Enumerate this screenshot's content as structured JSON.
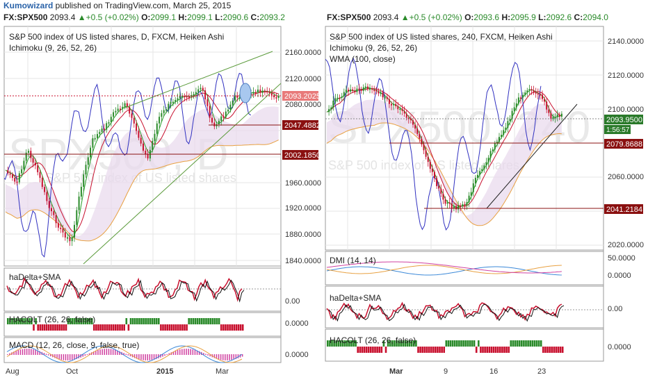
{
  "header": {
    "author": "Kumowizard",
    "rest": " published on TradingView.com, March 25, 2015"
  },
  "colors": {
    "up": "#2a8a2a",
    "down": "#c8102e",
    "blue": "#3030c0",
    "orange": "#e8a040",
    "kumo": "#e8d8ec",
    "grid": "#e6e6e6",
    "border": "#9a9a9a"
  },
  "left": {
    "quote": {
      "symbol": "FX:SPX500",
      "last": "2093.4",
      "change": "+0.5 (+0.02%)",
      "o_label": "O:",
      "o": "2099.1",
      "h_label": "H:",
      "h": "2099.1",
      "l_label": "L:",
      "l": "2090.6",
      "c_label": "C:",
      "c": "2093.2"
    },
    "title": "S&P 500 index of US listed shares, D, FXCM, Heiken Ashi",
    "indicator": "Ichimoku (9, 26, 52, 26)",
    "watermark": "SPX500, D",
    "watermark_sub": "S&P 500 index of US listed shares",
    "price_ticks": [
      "2160.0000",
      "2120.0000",
      "2080.0000",
      "1960.0000",
      "1920.0000",
      "1880.0000",
      "1840.0000"
    ],
    "price_tags": [
      {
        "text": "2093.2025",
        "bg": "#e87a7a"
      },
      {
        "text": "2047.4882",
        "bg": "#8a1010"
      },
      {
        "text": "2002.1850",
        "bg": "#8a1010"
      }
    ],
    "sub1": {
      "title": "haDelta+SMA",
      "tick": "0.00"
    },
    "sub2": {
      "title": "HACOLT (26, 26, false)",
      "tick": "0.0000"
    },
    "sub3": {
      "title": "MACD (12, 26, close, 9, false, true)",
      "tick": "0.0000"
    },
    "xaxis": [
      "Aug",
      "Oct",
      "2015",
      "Mar"
    ]
  },
  "right": {
    "quote": {
      "symbol": "FX:SPX500",
      "last": "2093.4",
      "change": "+0.5 (+0.02%)",
      "o_label": "O:",
      "o": "2093.6",
      "h_label": "H:",
      "h": "2095.9",
      "l_label": "L:",
      "l": "2092.6",
      "c_label": "C:",
      "c": "2094.0"
    },
    "title": "S&P 500 index of US listed shares, 240, FXCM, Heiken Ashi",
    "indicator": "Ichimoku (9, 26, 52, 26)",
    "indicator2": "WMA (100, close)",
    "watermark": "SPX500, 240",
    "watermark_sub": "S&P 500 index of US listed shares",
    "price_ticks": [
      "2140.0000",
      "2120.0000",
      "2100.0000",
      "2060.0000",
      "2020.0000"
    ],
    "price_tags": [
      {
        "text": "2093.9500",
        "bg": "#2a7a2a"
      },
      {
        "text": "1:56:57",
        "bg": "#2a7a2a"
      },
      {
        "text": "2079.8688",
        "bg": "#8a1010"
      },
      {
        "text": "2041.2184",
        "bg": "#8a1010"
      }
    ],
    "sub1": {
      "title": "DMI (14, 14)",
      "tick1": "50.0000",
      "tick2": "0.0000"
    },
    "sub2": {
      "title": "haDelta+SMA",
      "tick": "0.00"
    },
    "sub3": {
      "title": "HACOLT (26, 26, false)",
      "tick": "0.0000"
    },
    "xaxis": [
      "Mar",
      "9",
      "16",
      "23"
    ]
  }
}
